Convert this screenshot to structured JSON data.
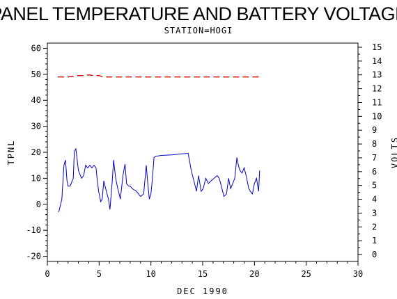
{
  "chart_data": {
    "type": "line",
    "title": "PANEL TEMPERATURE AND BATTERY VOLTAGE",
    "subtitle": "STATION=HOGI",
    "xlabel": "DEC 1990",
    "ylabel_left": "TPNL",
    "ylabel_right": "VOLTS",
    "xlim": [
      0,
      30
    ],
    "ylim_left": [
      -22,
      62
    ],
    "ylim_right": [
      -0.5,
      15.3
    ],
    "x_ticks": [
      0,
      5,
      10,
      15,
      20,
      25,
      30
    ],
    "y_left_ticks": [
      -20,
      -10,
      0,
      10,
      20,
      30,
      40,
      50,
      60
    ],
    "y_right_ticks": [
      0,
      1,
      2,
      3,
      4,
      5,
      6,
      7,
      8,
      9,
      10,
      11,
      12,
      13,
      14,
      15
    ],
    "grid": false,
    "series": [
      {
        "axis": "left",
        "color": "#0000cc",
        "style": "solid",
        "x": [
          1.1,
          1.4,
          1.6,
          1.75,
          1.9,
          2.0,
          2.2,
          2.5,
          2.6,
          2.75,
          3.0,
          3.3,
          3.5,
          3.7,
          3.9,
          4.1,
          4.3,
          4.5,
          4.7,
          4.8,
          4.95,
          5.15,
          5.3,
          5.45,
          5.7,
          5.9,
          6.05,
          6.25,
          6.4,
          6.6,
          6.8,
          7.05,
          7.3,
          7.5,
          7.65,
          7.85,
          8.0,
          8.2,
          8.6,
          9.0,
          9.3,
          9.55,
          9.7,
          9.85,
          10.0,
          10.15,
          10.3,
          10.5,
          10.7,
          11.0,
          12.0,
          13.0,
          13.6,
          13.9,
          14.15,
          14.4,
          14.6,
          14.85,
          15.05,
          15.3,
          15.55,
          15.8,
          16.1,
          16.4,
          16.6,
          16.8,
          17.05,
          17.3,
          17.5,
          17.7,
          17.9,
          18.1,
          18.3,
          18.45,
          18.6,
          18.8,
          19.0,
          19.2,
          19.45,
          19.6,
          19.8,
          20.0,
          20.2,
          20.4,
          20.5
        ],
        "y": [
          -3,
          2,
          15,
          17,
          9,
          7,
          7,
          10,
          20,
          21.5,
          13,
          10,
          11,
          15,
          14,
          15,
          14,
          15,
          14,
          10,
          5,
          1,
          2,
          9,
          5,
          2,
          -2,
          8,
          17,
          10,
          6,
          2,
          11,
          15.5,
          8,
          7,
          7,
          6,
          5,
          3,
          4,
          15,
          8,
          2,
          4,
          10,
          18,
          18.5,
          18.6,
          18.8,
          19.0,
          19.4,
          19.6,
          13,
          9,
          5,
          11,
          5,
          6,
          10,
          8,
          9,
          10,
          11,
          10,
          7,
          3,
          4,
          10,
          6,
          8,
          10,
          18,
          15,
          13,
          12,
          14,
          11,
          6,
          5,
          4,
          8,
          10,
          5,
          13
        ]
      },
      {
        "axis": "right",
        "color": "#cc0000",
        "style": "dashed",
        "x": [
          1.0,
          2.0,
          2.5,
          3.0,
          3.5,
          4.0,
          4.5,
          5.0,
          5.5,
          6.0,
          8.0,
          10.0,
          12.0,
          14.0,
          16.0,
          18.0,
          20.0,
          20.5
        ],
        "y": [
          12.85,
          12.85,
          12.9,
          12.95,
          12.95,
          13.0,
          12.95,
          12.95,
          12.85,
          12.85,
          12.85,
          12.85,
          12.85,
          12.85,
          12.85,
          12.85,
          12.85,
          12.85
        ]
      }
    ]
  }
}
